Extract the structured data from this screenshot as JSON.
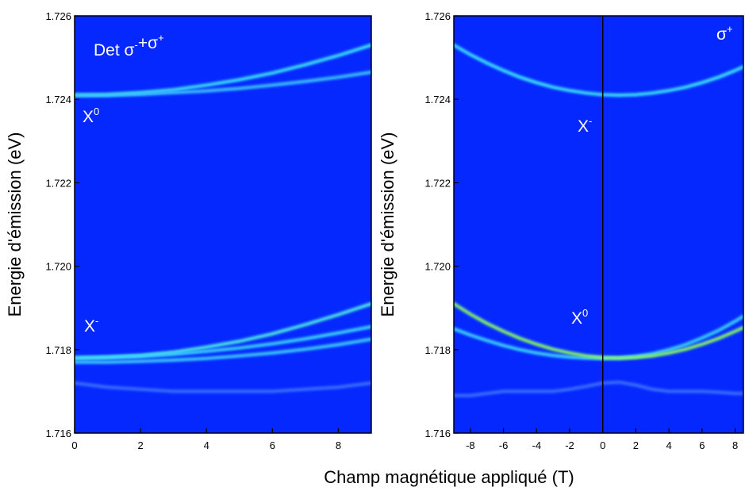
{
  "xlabel": "Champ magnétique appliqué (T)",
  "chart_data": [
    {
      "type": "heatmap-lines",
      "ylabel": "Energie d'émission (eV)",
      "background": "#0528ff",
      "xlim": [
        0,
        9
      ],
      "xticks": [
        0,
        2,
        4,
        6,
        8
      ],
      "ylim": [
        1.716,
        1.726
      ],
      "yticks": [
        1.716,
        1.718,
        {
          "value": 1.72,
          "label": "1.720"
        },
        1.722,
        1.724,
        1.726
      ],
      "annotations": [
        {
          "parts": [
            {
              "text": "Det σ"
            },
            {
              "sup": "-"
            },
            {
              "text": "+σ"
            },
            {
              "sup": "+"
            }
          ]
        },
        {
          "parts": [
            {
              "text": "X"
            },
            {
              "sup": "0"
            }
          ]
        },
        {
          "parts": [
            {
              "text": "X"
            },
            {
              "sup": "-"
            }
          ]
        }
      ],
      "x": [
        0,
        1,
        2,
        3,
        4,
        5,
        6,
        7,
        8,
        9
      ],
      "series": [
        {
          "color": "#3ce8ff",
          "values": [
            1.7241,
            1.72411,
            1.72416,
            1.72423,
            1.72434,
            1.72447,
            1.72463,
            1.72483,
            1.72505,
            1.7253
          ]
        },
        {
          "color": "#3cc8ff",
          "values": [
            1.7241,
            1.7241,
            1.72412,
            1.72416,
            1.7242,
            1.72426,
            1.72434,
            1.72443,
            1.72453,
            1.72465
          ]
        },
        {
          "color": "#50f0e0",
          "values": [
            1.7178,
            1.71782,
            1.71786,
            1.71794,
            1.71806,
            1.7182,
            1.71838,
            1.7186,
            1.71884,
            1.7191
          ]
        },
        {
          "color": "#3cd8ff",
          "values": [
            1.7178,
            1.71781,
            1.71784,
            1.71789,
            1.71796,
            1.71804,
            1.71814,
            1.71826,
            1.7184,
            1.71855
          ]
        },
        {
          "color": "#3cd0ff",
          "values": [
            1.7177,
            1.7177,
            1.71772,
            1.71775,
            1.71779,
            1.71785,
            1.71792,
            1.71801,
            1.71812,
            1.71825
          ]
        },
        {
          "color": "#3a70ff",
          "values": [
            1.7172,
            1.7171,
            1.71705,
            1.717,
            1.717,
            1.717,
            1.717,
            1.71705,
            1.7171,
            1.7172
          ]
        }
      ]
    },
    {
      "type": "heatmap-lines",
      "ylabel": "Energie d'émission (eV)",
      "background": "#0528ff",
      "xlim": [
        -9,
        8.5
      ],
      "xticks": [
        -8,
        -6,
        -4,
        -2,
        0,
        2,
        4,
        6,
        8
      ],
      "ylim": [
        1.716,
        1.726
      ],
      "yticks": [
        1.716,
        1.718,
        {
          "value": 1.72,
          "label": "1.720"
        },
        1.722,
        1.724,
        1.726
      ],
      "vline": 0,
      "annotations": [
        {
          "parts": [
            {
              "text": "σ"
            },
            {
              "sup": "+"
            }
          ]
        },
        {
          "parts": [
            {
              "text": "X"
            },
            {
              "sup": "-"
            }
          ]
        },
        {
          "parts": [
            {
              "text": "X"
            },
            {
              "sup": "0"
            }
          ]
        }
      ],
      "x": [
        -9,
        -8,
        -7,
        -6,
        -5,
        -4,
        -3,
        -2,
        -1,
        0,
        1,
        2,
        3,
        4,
        5,
        6,
        7,
        8,
        8.5
      ],
      "series": [
        {
          "color": "#3ce8ff",
          "values": [
            1.7253,
            1.72507,
            1.72487,
            1.72469,
            1.72453,
            1.7244,
            1.72429,
            1.72421,
            1.72415,
            1.72411,
            1.7241,
            1.72411,
            1.72415,
            1.72421,
            1.72429,
            1.7244,
            1.72453,
            1.72469,
            1.72478
          ]
        },
        {
          "color": "#3cd8ff",
          "values": [
            1.7185,
            1.71835,
            1.71822,
            1.7181,
            1.718,
            1.71792,
            1.71786,
            1.71782,
            1.7178,
            1.71779,
            1.7178,
            1.71784,
            1.7179,
            1.718,
            1.71812,
            1.71828,
            1.71846,
            1.71868,
            1.7188
          ]
        },
        {
          "color": "#8cff60",
          "values": [
            1.7191,
            1.71885,
            1.71863,
            1.71844,
            1.71827,
            1.71813,
            1.71801,
            1.71792,
            1.71785,
            1.71781,
            1.7178,
            1.71781,
            1.71785,
            1.71792,
            1.71801,
            1.71813,
            1.71827,
            1.71844,
            1.71853
          ]
        },
        {
          "color": "#3a70ff",
          "values": [
            1.7169,
            1.7169,
            1.71695,
            1.717,
            1.717,
            1.717,
            1.717,
            1.71705,
            1.71712,
            1.7172,
            1.71722,
            1.71715,
            1.71705,
            1.717,
            1.717,
            1.717,
            1.71698,
            1.71695,
            1.71695
          ]
        }
      ]
    }
  ]
}
